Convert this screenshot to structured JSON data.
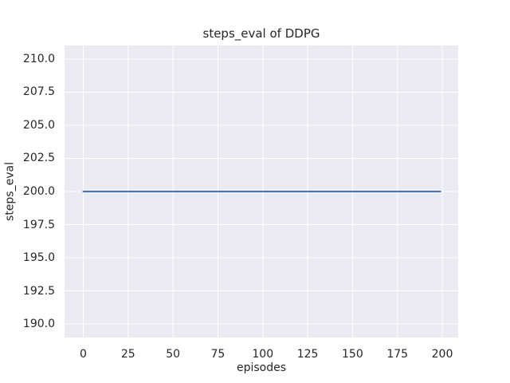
{
  "chart_data": {
    "type": "line",
    "title": "steps_eval of DDPG",
    "xlabel": "episodes",
    "ylabel": "steps_eval",
    "x_ticks": [
      0,
      25,
      50,
      75,
      100,
      125,
      150,
      175,
      200
    ],
    "x_tick_labels": [
      "0",
      "25",
      "50",
      "75",
      "100",
      "125",
      "150",
      "175",
      "200"
    ],
    "y_ticks": [
      210.0,
      207.5,
      205.0,
      202.5,
      200.0,
      197.5,
      195.0,
      192.5,
      190.0
    ],
    "y_tick_labels": [
      "210.0",
      "207.5",
      "205.0",
      "202.5",
      "200.0",
      "197.5",
      "195.0",
      "192.5",
      "190.0"
    ],
    "xlim": [
      -10.43,
      208.87
    ],
    "ylim": [
      188.98,
      211.02
    ],
    "grid": true,
    "legend": false,
    "series": [
      {
        "name": "steps_eval",
        "color": "#4c72b0",
        "line_width": 2,
        "points": [
          [
            0,
            200
          ],
          [
            199,
            200
          ]
        ],
        "description": "constant value 200 for episodes 0 through 199"
      }
    ],
    "style": {
      "plot_background": "#eaeaf2",
      "grid_color": "#ffffff",
      "text_color": "#262626",
      "figure_background": "#ffffff"
    }
  }
}
